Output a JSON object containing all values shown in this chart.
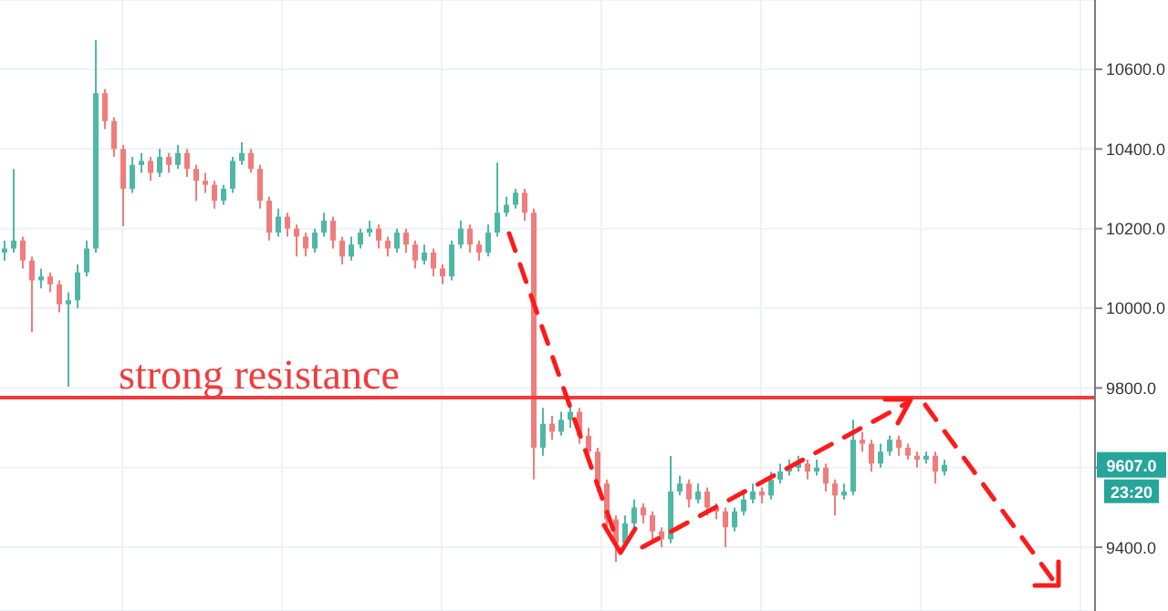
{
  "chart_data": {
    "type": "candlestick",
    "categories": [
      null,
      null,
      null,
      null,
      null,
      null,
      null,
      null,
      null,
      null,
      null,
      null,
      null,
      null,
      null,
      null,
      null,
      null,
      null,
      null,
      null,
      null,
      null,
      null,
      null,
      null,
      null,
      null,
      null,
      null,
      null,
      null,
      null,
      null,
      null,
      null,
      null,
      null,
      null,
      null,
      null,
      null,
      null,
      null,
      null,
      null,
      null,
      null,
      null,
      null,
      null,
      null,
      null,
      null,
      null,
      null,
      null,
      null,
      null,
      null,
      null,
      null,
      null,
      null,
      null,
      null,
      null,
      null,
      null,
      null,
      null,
      null,
      null,
      null,
      null,
      null,
      null,
      null,
      null,
      null,
      null,
      null,
      null,
      null,
      null,
      null,
      null,
      null,
      null,
      null,
      null,
      null,
      null,
      null,
      null,
      null,
      null,
      null,
      null,
      null,
      null,
      null,
      null,
      null,
      null,
      null,
      null,
      null,
      null,
      null,
      null,
      null,
      null,
      null,
      null,
      null,
      null,
      null,
      null,
      null
    ],
    "ohlc": [
      [
        10140,
        10170,
        10120,
        10150
      ],
      [
        10150,
        10350,
        10140,
        10170
      ],
      [
        10170,
        10180,
        10100,
        10120
      ],
      [
        10120,
        10130,
        9940,
        10070
      ],
      [
        10070,
        10100,
        10050,
        10080
      ],
      [
        10080,
        10090,
        10040,
        10060
      ],
      [
        10060,
        10070,
        9990,
        10010
      ],
      [
        10010,
        10040,
        9803,
        10020
      ],
      [
        10020,
        10110,
        10000,
        10090
      ],
      [
        10090,
        10170,
        10080,
        10150
      ],
      [
        10150,
        10673,
        10140,
        10540
      ],
      [
        10540,
        10550,
        10450,
        10470
      ],
      [
        10470,
        10480,
        10380,
        10400
      ],
      [
        10400,
        10410,
        10206,
        10300
      ],
      [
        10300,
        10380,
        10290,
        10360
      ],
      [
        10360,
        10390,
        10340,
        10370
      ],
      [
        10370,
        10380,
        10320,
        10340
      ],
      [
        10340,
        10400,
        10330,
        10380
      ],
      [
        10380,
        10390,
        10340,
        10360
      ],
      [
        10360,
        10410,
        10350,
        10390
      ],
      [
        10390,
        10400,
        10330,
        10350
      ],
      [
        10350,
        10360,
        10270,
        10320
      ],
      [
        10320,
        10340,
        10290,
        10310
      ],
      [
        10310,
        10320,
        10250,
        10270
      ],
      [
        10270,
        10310,
        10260,
        10300
      ],
      [
        10300,
        10380,
        10290,
        10370
      ],
      [
        10370,
        10417,
        10360,
        10390
      ],
      [
        10390,
        10400,
        10340,
        10350
      ],
      [
        10350,
        10360,
        10250,
        10270
      ],
      [
        10270,
        10280,
        10170,
        10190
      ],
      [
        10190,
        10250,
        10180,
        10230
      ],
      [
        10230,
        10240,
        10180,
        10200
      ],
      [
        10200,
        10210,
        10130,
        10180
      ],
      [
        10180,
        10190,
        10130,
        10150
      ],
      [
        10150,
        10200,
        10140,
        10190
      ],
      [
        10190,
        10240,
        10180,
        10220
      ],
      [
        10220,
        10230,
        10150,
        10170
      ],
      [
        10170,
        10180,
        10110,
        10130
      ],
      [
        10130,
        10180,
        10120,
        10160
      ],
      [
        10160,
        10200,
        10150,
        10190
      ],
      [
        10190,
        10220,
        10180,
        10200
      ],
      [
        10200,
        10210,
        10150,
        10170
      ],
      [
        10170,
        10180,
        10130,
        10150
      ],
      [
        10150,
        10200,
        10140,
        10190
      ],
      [
        10190,
        10200,
        10140,
        10160
      ],
      [
        10160,
        10170,
        10100,
        10120
      ],
      [
        10120,
        10160,
        10110,
        10140
      ],
      [
        10140,
        10150,
        10080,
        10100
      ],
      [
        10100,
        10110,
        10060,
        10080
      ],
      [
        10080,
        10170,
        10070,
        10160
      ],
      [
        10160,
        10220,
        10150,
        10200
      ],
      [
        10200,
        10210,
        10140,
        10160
      ],
      [
        10160,
        10170,
        10120,
        10140
      ],
      [
        10140,
        10210,
        10130,
        10190
      ],
      [
        10190,
        10366,
        10180,
        10240
      ],
      [
        10240,
        10280,
        10230,
        10260
      ],
      [
        10260,
        10300,
        10250,
        10290
      ],
      [
        10290,
        10300,
        10220,
        10240
      ],
      [
        10240,
        10250,
        9570,
        9650
      ],
      [
        9650,
        9750,
        9630,
        9710
      ],
      [
        9710,
        9730,
        9670,
        9690
      ],
      [
        9690,
        9740,
        9680,
        9720
      ],
      [
        9720,
        9760,
        9700,
        9740
      ],
      [
        9740,
        9750,
        9660,
        9680
      ],
      [
        9680,
        9700,
        9620,
        9640
      ],
      [
        9640,
        9650,
        9540,
        9560
      ],
      [
        9560,
        9570,
        9450,
        9470
      ],
      [
        9470,
        9480,
        9363,
        9410
      ],
      [
        9410,
        9480,
        9400,
        9460
      ],
      [
        9460,
        9520,
        9450,
        9500
      ],
      [
        9500,
        9510,
        9460,
        9480
      ],
      [
        9480,
        9490,
        9420,
        9440
      ],
      [
        9440,
        9450,
        9400,
        9420
      ],
      [
        9420,
        9629,
        9410,
        9540
      ],
      [
        9540,
        9580,
        9530,
        9560
      ],
      [
        9560,
        9570,
        9500,
        9520
      ],
      [
        9520,
        9560,
        9510,
        9540
      ],
      [
        9540,
        9550,
        9480,
        9500
      ],
      [
        9500,
        9510,
        9470,
        9490
      ],
      [
        9490,
        9500,
        9400,
        9450
      ],
      [
        9450,
        9500,
        9440,
        9490
      ],
      [
        9490,
        9540,
        9480,
        9520
      ],
      [
        9520,
        9560,
        9510,
        9540
      ],
      [
        9540,
        9550,
        9510,
        9530
      ],
      [
        9530,
        9590,
        9520,
        9570
      ],
      [
        9570,
        9610,
        9560,
        9590
      ],
      [
        9590,
        9620,
        9580,
        9600
      ],
      [
        9600,
        9630,
        9590,
        9610
      ],
      [
        9610,
        9620,
        9570,
        9590
      ],
      [
        9590,
        9620,
        9580,
        9600
      ],
      [
        9600,
        9610,
        9540,
        9560
      ],
      [
        9560,
        9570,
        9480,
        9530
      ],
      [
        9530,
        9560,
        9520,
        9540
      ],
      [
        9540,
        9720,
        9530,
        9670
      ],
      [
        9670,
        9690,
        9640,
        9660
      ],
      [
        9660,
        9670,
        9590,
        9610
      ],
      [
        9610,
        9660,
        9600,
        9640
      ],
      [
        9640,
        9680,
        9630,
        9670
      ],
      [
        9670,
        9680,
        9630,
        9650
      ],
      [
        9650,
        9660,
        9620,
        9630
      ],
      [
        9630,
        9640,
        9600,
        9620
      ],
      [
        9620,
        9640,
        9610,
        9630
      ],
      [
        9630,
        9640,
        9560,
        9590
      ],
      [
        9590,
        9620,
        9580,
        9607
      ],
      null,
      null,
      null,
      null,
      null,
      null,
      null,
      null,
      null,
      null,
      null,
      null,
      null,
      null,
      null,
      null
    ],
    "colors": [
      "#4fb7a6",
      "#4fb7a6",
      "#f07c7c",
      "#f07c7c",
      "#4fb7a6",
      "#f07c7c",
      "#f07c7c",
      "#4fb7a6",
      "#4fb7a6",
      "#4fb7a6",
      "#4fb7a6",
      "#f07c7c",
      "#f07c7c",
      "#f07c7c",
      "#4fb7a6",
      "#4fb7a6",
      "#f07c7c",
      "#4fb7a6",
      "#f07c7c",
      "#4fb7a6",
      "#f07c7c",
      "#f07c7c",
      "#f07c7c",
      "#f07c7c",
      "#4fb7a6",
      "#4fb7a6",
      "#4fb7a6",
      "#f07c7c",
      "#f07c7c",
      "#f07c7c",
      "#4fb7a6",
      "#f07c7c",
      "#f07c7c",
      "#f07c7c",
      "#4fb7a6",
      "#4fb7a6",
      "#f07c7c",
      "#f07c7c",
      "#4fb7a6",
      "#4fb7a6",
      "#4fb7a6",
      "#f07c7c",
      "#f07c7c",
      "#4fb7a6",
      "#f07c7c",
      "#f07c7c",
      "#4fb7a6",
      "#f07c7c",
      "#f07c7c",
      "#4fb7a6",
      "#4fb7a6",
      "#f07c7c",
      "#f07c7c",
      "#4fb7a6",
      "#4fb7a6",
      "#4fb7a6",
      "#4fb7a6",
      "#f07c7c",
      "#f07c7c",
      "#4fb7a6",
      "#f07c7c",
      "#4fb7a6",
      "#4fb7a6",
      "#f07c7c",
      "#f07c7c",
      "#f07c7c",
      "#f07c7c",
      "#f07c7c",
      "#4fb7a6",
      "#4fb7a6",
      "#f07c7c",
      "#f07c7c",
      "#f07c7c",
      "#4fb7a6",
      "#4fb7a6",
      "#f07c7c",
      "#4fb7a6",
      "#f07c7c",
      "#f07c7c",
      "#f07c7c",
      "#4fb7a6",
      "#4fb7a6",
      "#4fb7a6",
      "#f07c7c",
      "#4fb7a6",
      "#4fb7a6",
      "#4fb7a6",
      "#4fb7a6",
      "#f07c7c",
      "#4fb7a6",
      "#f07c7c",
      "#f07c7c",
      "#4fb7a6",
      "#4fb7a6",
      "#f07c7c",
      "#f07c7c",
      "#4fb7a6",
      "#4fb7a6",
      "#f07c7c",
      "#f07c7c",
      "#f07c7c",
      "#4fb7a6",
      "#f07c7c",
      "#4fb7a6",
      null,
      null,
      null,
      null,
      null,
      null,
      null,
      null,
      null,
      null,
      null,
      null,
      null,
      null,
      null,
      null
    ],
    "ylim": [
      9240,
      10774
    ],
    "yticks": [
      {
        "value": 9400,
        "label": "9400.0"
      },
      {
        "value": 9600,
        "label": null
      },
      {
        "value": 9800,
        "label": "9800.0"
      },
      {
        "value": 10000,
        "label": "10000.0"
      },
      {
        "value": 10200,
        "label": "10200.0"
      },
      {
        "value": 10400,
        "label": "10400.0"
      },
      {
        "value": 10600,
        "label": "10600.0"
      }
    ],
    "grid": true,
    "ref_lines": [
      {
        "axis": "y",
        "value": 9776,
        "label": "strong resistance",
        "color": "#f23b3b"
      }
    ],
    "annotations": [
      {
        "text": "9607.0",
        "y": 9607
      },
      "23:20"
    ]
  }
}
